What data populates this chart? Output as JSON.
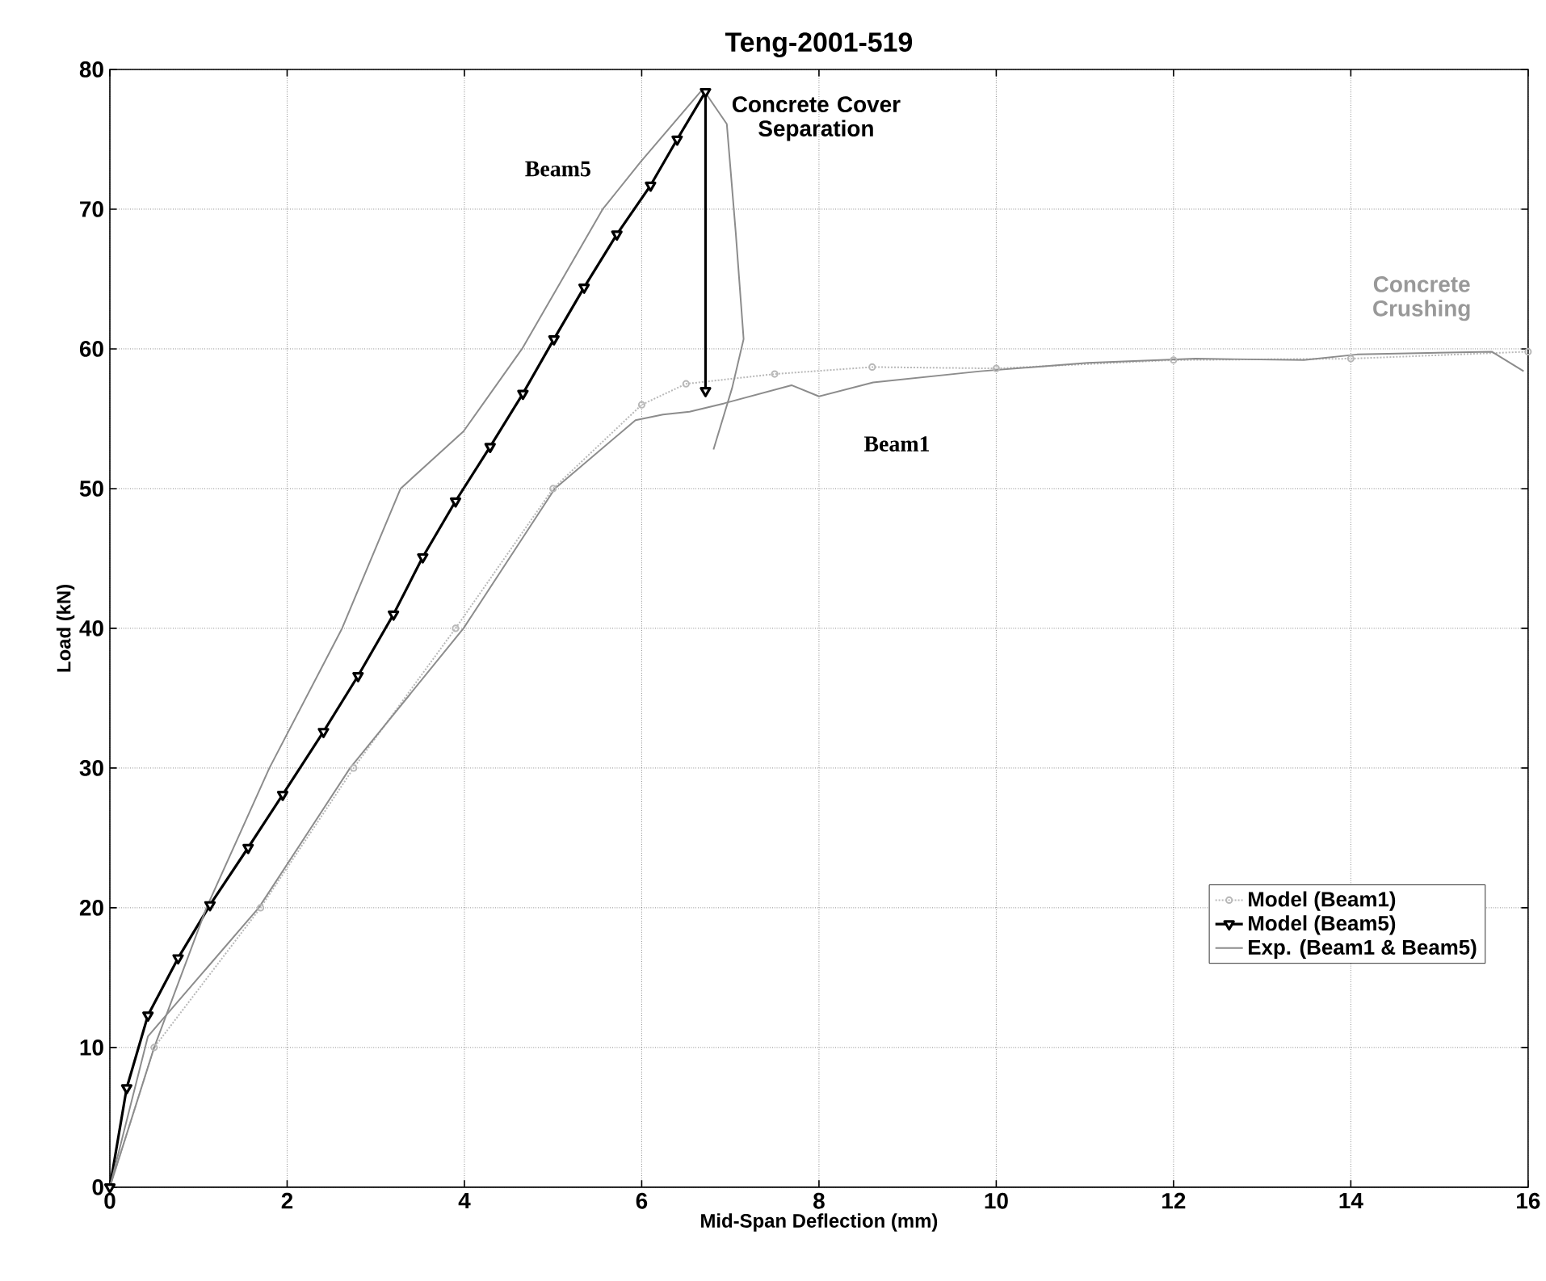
{
  "chart_data": {
    "type": "line",
    "title": "Teng-2001-519",
    "xlabel": "Mid-Span Deflection (mm)",
    "ylabel": "Load (kN)",
    "xlim": [
      0,
      16
    ],
    "ylim": [
      0,
      80
    ],
    "xticks": [
      0,
      2,
      4,
      6,
      8,
      10,
      12,
      14,
      16
    ],
    "yticks": [
      0,
      10,
      20,
      30,
      40,
      50,
      60,
      70,
      80
    ],
    "grid": true,
    "legend": "bottom right",
    "series": [
      {
        "name": "Model (Beam1)",
        "color": "#b8b8b8",
        "marker": "circle",
        "line_style": "dotted",
        "x": [
          0,
          0.5,
          1.7,
          2.75,
          3.9,
          5.0,
          6.0,
          6.5,
          7.5,
          8.6,
          10,
          12,
          14,
          16
        ],
        "values": [
          0,
          10,
          20,
          30,
          40,
          50,
          56,
          57.5,
          58.2,
          58.7,
          58.6,
          59.2,
          59.3,
          59.8
        ]
      },
      {
        "name": "Model (Beam5)",
        "color": "#000000",
        "marker": "triangle",
        "line_style": "solid",
        "x": [
          0,
          0.19,
          0.43,
          0.77,
          1.13,
          1.56,
          1.95,
          2.41,
          2.8,
          3.2,
          3.53,
          3.9,
          4.29,
          4.66,
          5.01,
          5.35,
          5.72,
          6.1,
          6.4,
          6.72,
          6.72
        ],
        "values": [
          0,
          7.1,
          12.3,
          16.4,
          20.2,
          24.3,
          28.1,
          32.6,
          36.6,
          41,
          45.1,
          49.1,
          53,
          56.8,
          60.7,
          64.4,
          68.2,
          71.7,
          75,
          78.4,
          57
        ]
      },
      {
        "name": "Exp. (Beam1 & Beam5)",
        "color": "#8c8c8c",
        "marker": "none",
        "line_style": "solid",
        "x": [
          0,
          0.43,
          1.68,
          2.71,
          3.99,
          5.02,
          5.93,
          6.24,
          6.54,
          6.93,
          7.69,
          8.0,
          8.61,
          9.82,
          11.03,
          12.25,
          13.47,
          14.07,
          15.59,
          15.95
        ],
        "values": [
          0,
          10.8,
          20,
          30,
          40,
          50,
          54.9,
          55.3,
          55.5,
          56.1,
          57.4,
          56.6,
          57.6,
          58.4,
          59,
          59.3,
          59.2,
          59.6,
          59.8,
          58.4
        ]
      },
      {
        "color": "#8c8c8c",
        "marker": "none",
        "line_style": "solid",
        "x": [
          0,
          0.5,
          1.09,
          1.8,
          2.62,
          3.28,
          3.99,
          4.65,
          5.56,
          5.99,
          6.69,
          6.96,
          7.06,
          7.15,
          7.02,
          6.81
        ],
        "values": [
          0,
          10,
          20,
          30,
          40,
          50,
          54.1,
          60,
          70,
          73.4,
          78.6,
          76.1,
          68.4,
          60.7,
          57.2,
          52.8
        ]
      }
    ],
    "annotations": [
      "Beam5",
      "Concrete Cover Separation",
      "Beam1",
      "Concrete Crushing"
    ]
  }
}
